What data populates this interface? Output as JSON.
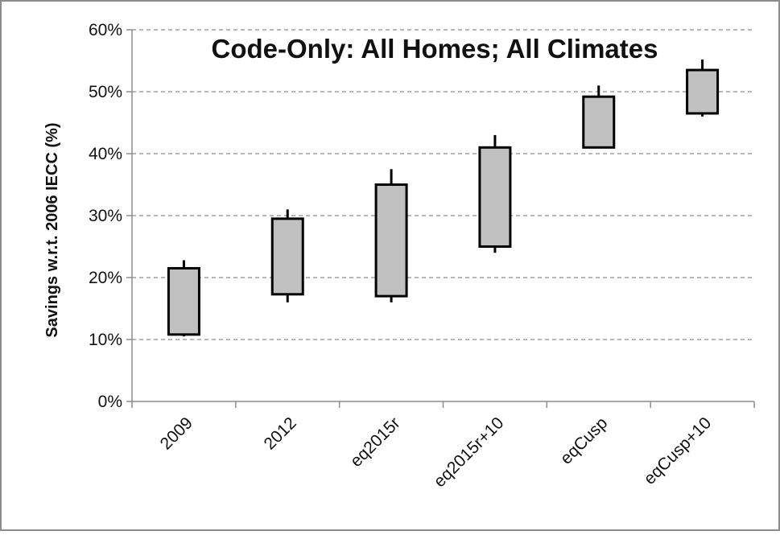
{
  "chart_data": {
    "type": "box",
    "title": "Code-Only: All Homes; All Climates",
    "xlabel": "",
    "ylabel": "Savings w.r.t. 2006 IECC (%)",
    "ylim": [
      0,
      60
    ],
    "ytick_values": [
      0,
      10,
      20,
      30,
      40,
      50,
      60
    ],
    "ytick_labels": [
      "0%",
      "10%",
      "20%",
      "30%",
      "40%",
      "50%",
      "60%"
    ],
    "grid": "horizontal-dashed",
    "colors": {
      "box_fill": "#c0c0c0",
      "box_stroke": "#000000",
      "grid": "#8c8c8c",
      "axis": "#8c8c8c",
      "frame": "#8c8c8c"
    },
    "categories": [
      "2009",
      "2012",
      "eq2015r",
      "eq2015r+10",
      "eqCusp",
      "eqCusp+10"
    ],
    "series": [
      {
        "min": [
          10.5,
          16.0,
          16.0,
          24.0,
          41.0,
          46.0
        ],
        "low": [
          10.8,
          17.3,
          17.0,
          25.0,
          41.0,
          46.5
        ],
        "high": [
          21.5,
          29.5,
          35.0,
          41.0,
          49.2,
          53.5
        ],
        "max": [
          22.8,
          31.0,
          37.5,
          43.0,
          51.0,
          55.2
        ]
      }
    ]
  }
}
